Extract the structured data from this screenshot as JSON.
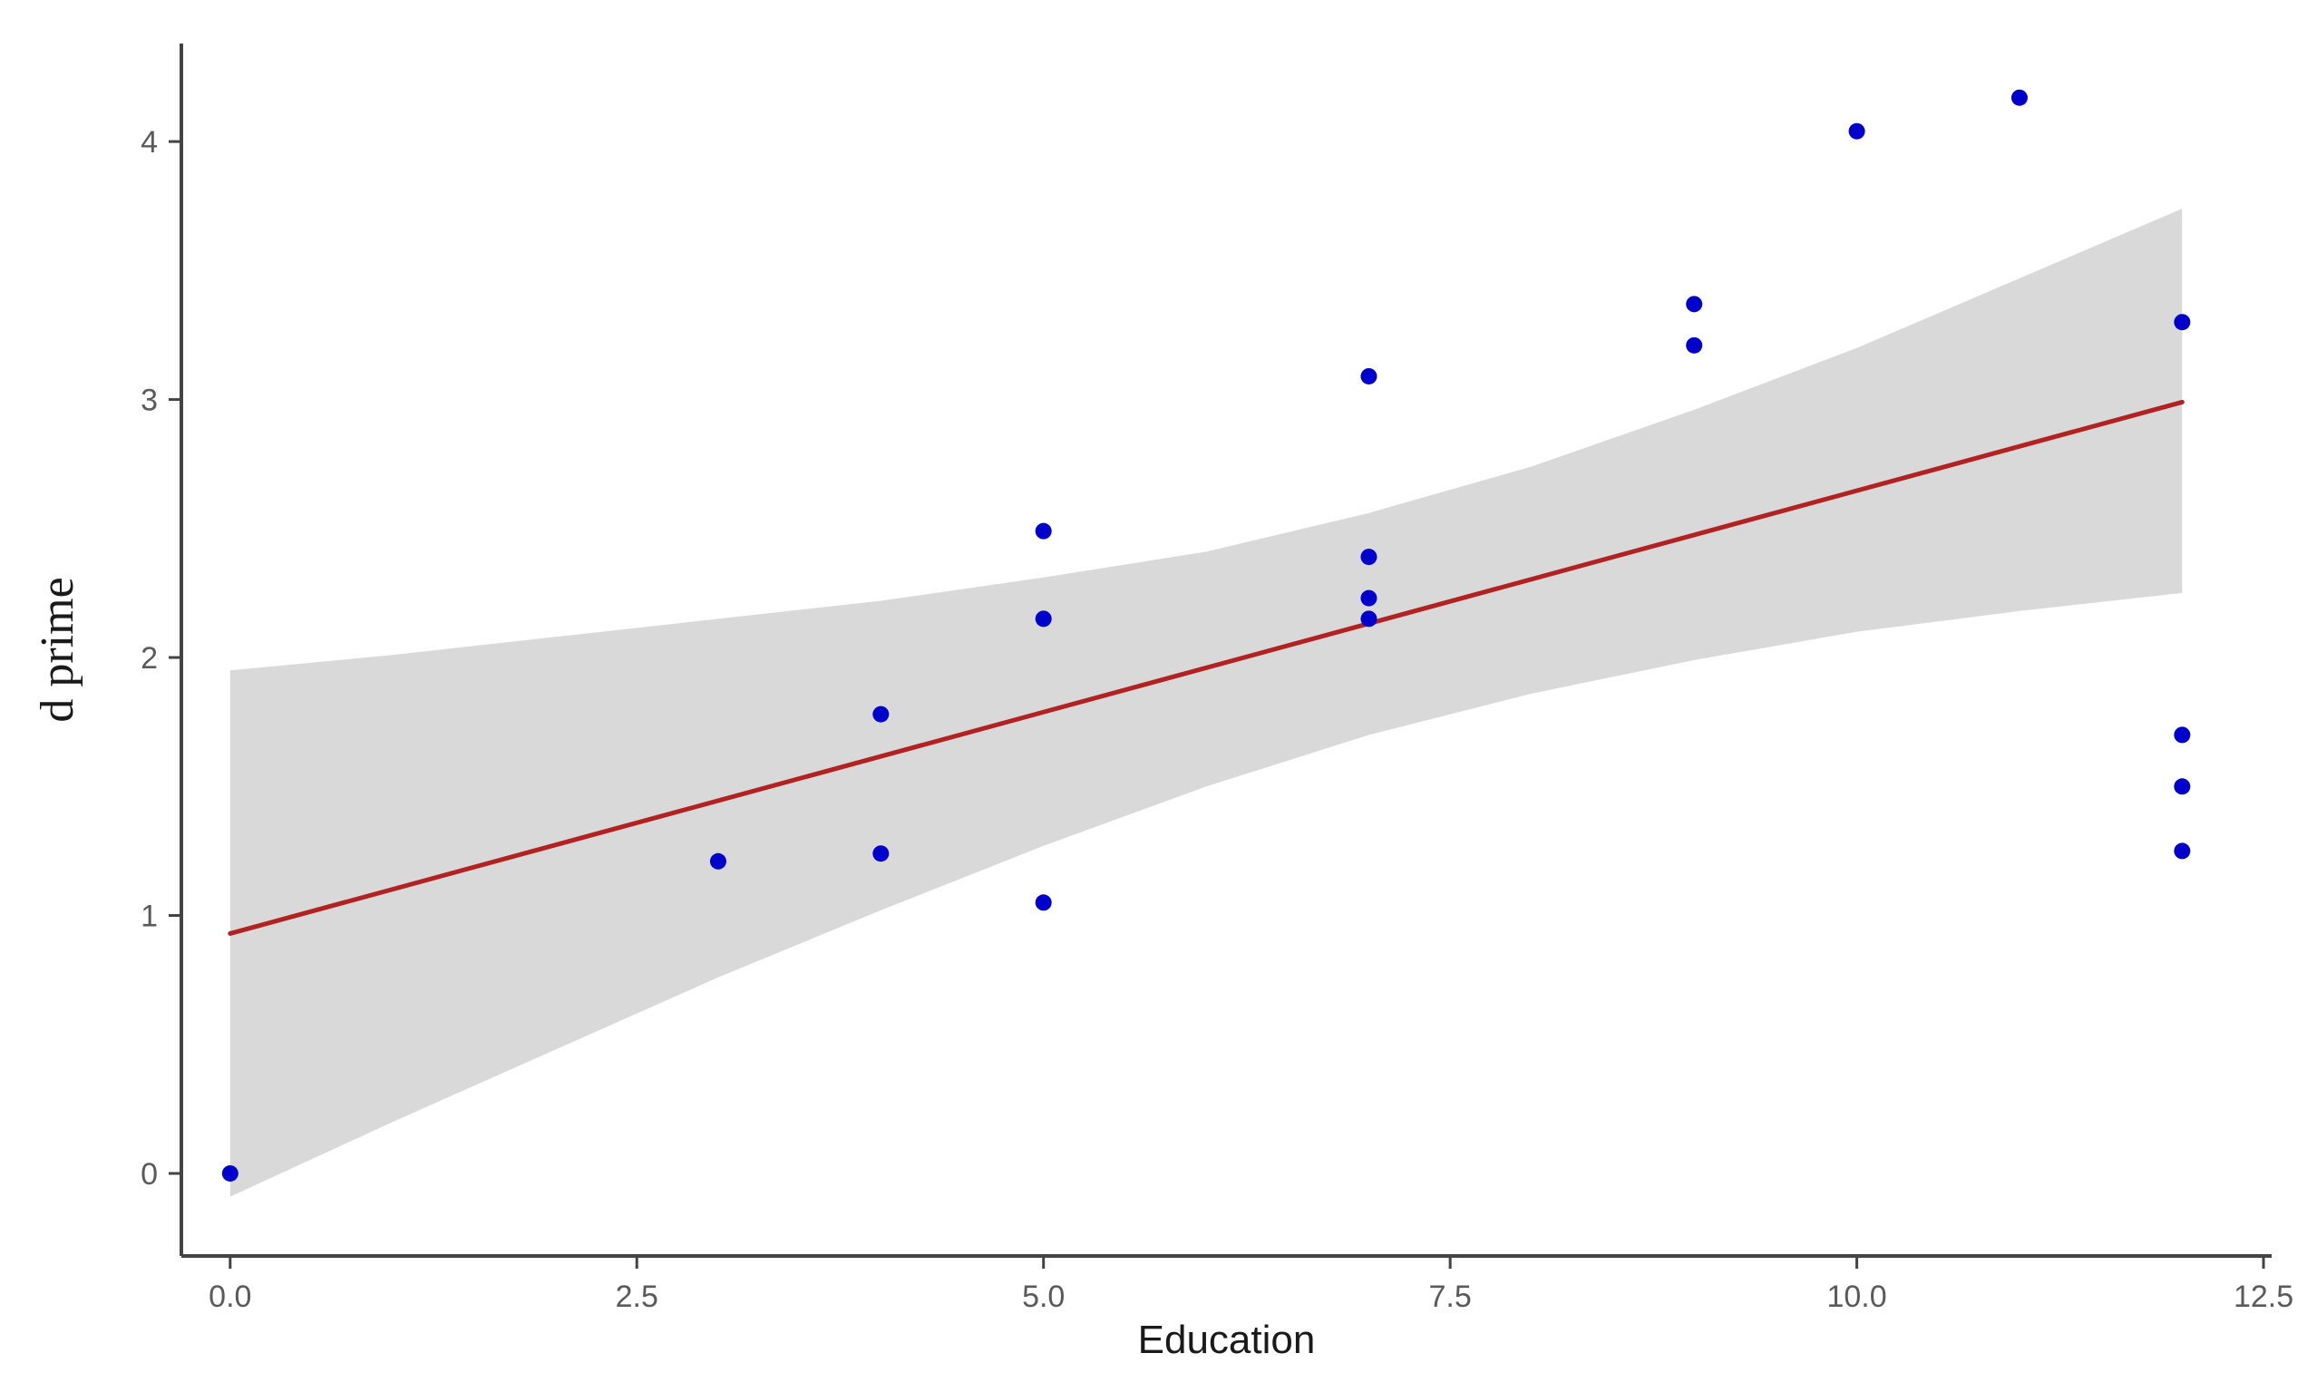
{
  "chart_data": {
    "type": "scatter",
    "title": "",
    "xlabel": "Education",
    "ylabel": "d prime",
    "xlim": [
      -0.3,
      12.55
    ],
    "ylim": [
      -0.32,
      4.38
    ],
    "x_ticks": [
      0.0,
      2.5,
      5.0,
      7.5,
      10.0,
      12.5
    ],
    "x_tick_labels": [
      "0.0",
      "2.5",
      "5.0",
      "7.5",
      "10.0",
      "12.5"
    ],
    "y_ticks": [
      0,
      1,
      2,
      3,
      4
    ],
    "y_tick_labels": [
      "0",
      "1",
      "2",
      "3",
      "4"
    ],
    "grid": false,
    "legend": "none",
    "points": {
      "x": [
        0,
        3,
        4,
        4,
        5,
        5,
        5,
        7,
        7,
        7,
        7,
        9,
        9,
        10,
        11,
        12,
        12,
        12,
        12
      ],
      "y": [
        0.0,
        1.21,
        1.24,
        1.78,
        1.05,
        2.15,
        2.49,
        2.15,
        2.23,
        2.39,
        3.09,
        3.21,
        3.37,
        4.04,
        4.17,
        3.3,
        1.7,
        1.5,
        1.25
      ],
      "color": "#0000cc"
    },
    "regression_line": {
      "x": [
        0,
        12
      ],
      "y": [
        0.93,
        2.99
      ],
      "color": "#b22222"
    },
    "confidence_band": {
      "x": [
        0,
        1,
        2,
        3,
        4,
        5,
        6,
        7,
        8,
        9,
        10,
        11,
        12
      ],
      "lower": [
        -0.09,
        0.2,
        0.48,
        0.76,
        1.02,
        1.27,
        1.5,
        1.7,
        1.86,
        1.99,
        2.1,
        2.18,
        2.25
      ],
      "upper": [
        1.95,
        2.01,
        2.08,
        2.15,
        2.22,
        2.31,
        2.41,
        2.56,
        2.74,
        2.96,
        3.2,
        3.47,
        3.74
      ],
      "color": "#d9d9d9"
    }
  }
}
